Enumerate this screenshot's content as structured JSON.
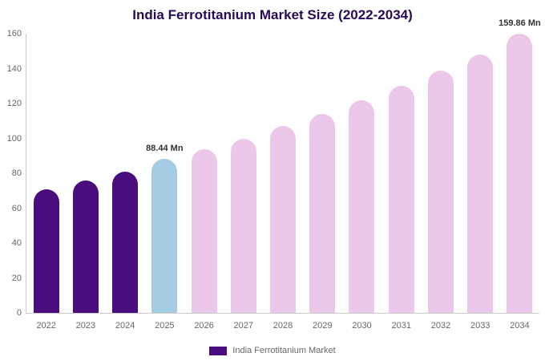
{
  "title": "India Ferrotitanium Market Size (2022-2034)",
  "legend": {
    "label": "India Ferrotitanium Market",
    "swatch_color": "#4a0d7e"
  },
  "colors": {
    "historical": "#4a0d7e",
    "current": "#a4cce3",
    "forecast": "#ebc8e9",
    "title_text": "#270b56",
    "axis_text": "#666666",
    "annotation_text": "#333333"
  },
  "chart_data": {
    "type": "bar",
    "title": "India Ferrotitanium Market Size (2022-2034)",
    "categories": [
      "2022",
      "2023",
      "2024",
      "2025",
      "2026",
      "2027",
      "2028",
      "2029",
      "2030",
      "2031",
      "2032",
      "2033",
      "2034"
    ],
    "values": [
      71,
      76,
      81,
      88.44,
      94,
      100,
      107,
      114,
      122,
      130,
      139,
      148,
      159.86
    ],
    "bar_colors": [
      "#4a0d7e",
      "#4a0d7e",
      "#4a0d7e",
      "#a4cce3",
      "#ebc8e9",
      "#ebc8e9",
      "#ebc8e9",
      "#ebc8e9",
      "#ebc8e9",
      "#ebc8e9",
      "#ebc8e9",
      "#ebc8e9",
      "#ebc8e9"
    ],
    "yticks": [
      0,
      20,
      40,
      60,
      80,
      100,
      120,
      140,
      160
    ],
    "ylim": [
      0,
      160
    ],
    "xlabel": "",
    "ylabel": "",
    "units": "Mn",
    "grid": false,
    "legend_position": "bottom",
    "annotations": [
      {
        "category": "2025",
        "text": "88.44 Mn"
      },
      {
        "category": "2034",
        "text": "159.86 Mn"
      }
    ]
  }
}
